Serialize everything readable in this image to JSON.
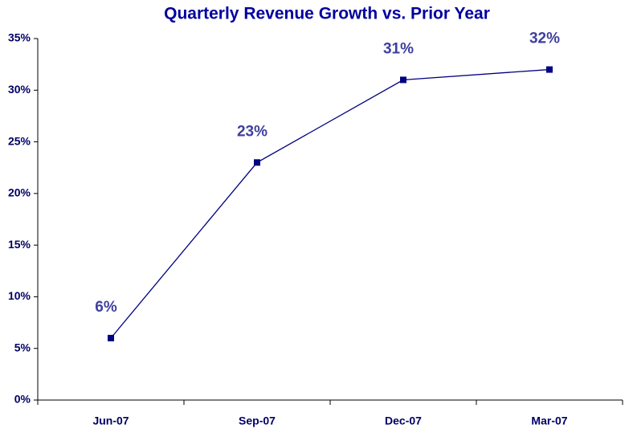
{
  "chart_data": {
    "type": "line",
    "title": "Quarterly Revenue Growth vs. Prior Year",
    "categories": [
      "Jun-07",
      "Sep-07",
      "Dec-07",
      "Mar-07"
    ],
    "values": [
      6,
      23,
      31,
      32
    ],
    "value_labels": [
      "6%",
      "23%",
      "31%",
      "32%"
    ],
    "color": "#000080",
    "ylim": [
      0,
      35
    ],
    "yticks": [
      {
        "value": 0,
        "label": "0%"
      },
      {
        "value": 5,
        "label": "5%"
      },
      {
        "value": 10,
        "label": "10%"
      },
      {
        "value": 15,
        "label": "15%"
      },
      {
        "value": 20,
        "label": "20%"
      },
      {
        "value": 25,
        "label": "25%"
      },
      {
        "value": 30,
        "label": "30%"
      },
      {
        "value": 35,
        "label": "35%"
      }
    ],
    "grid": false
  }
}
